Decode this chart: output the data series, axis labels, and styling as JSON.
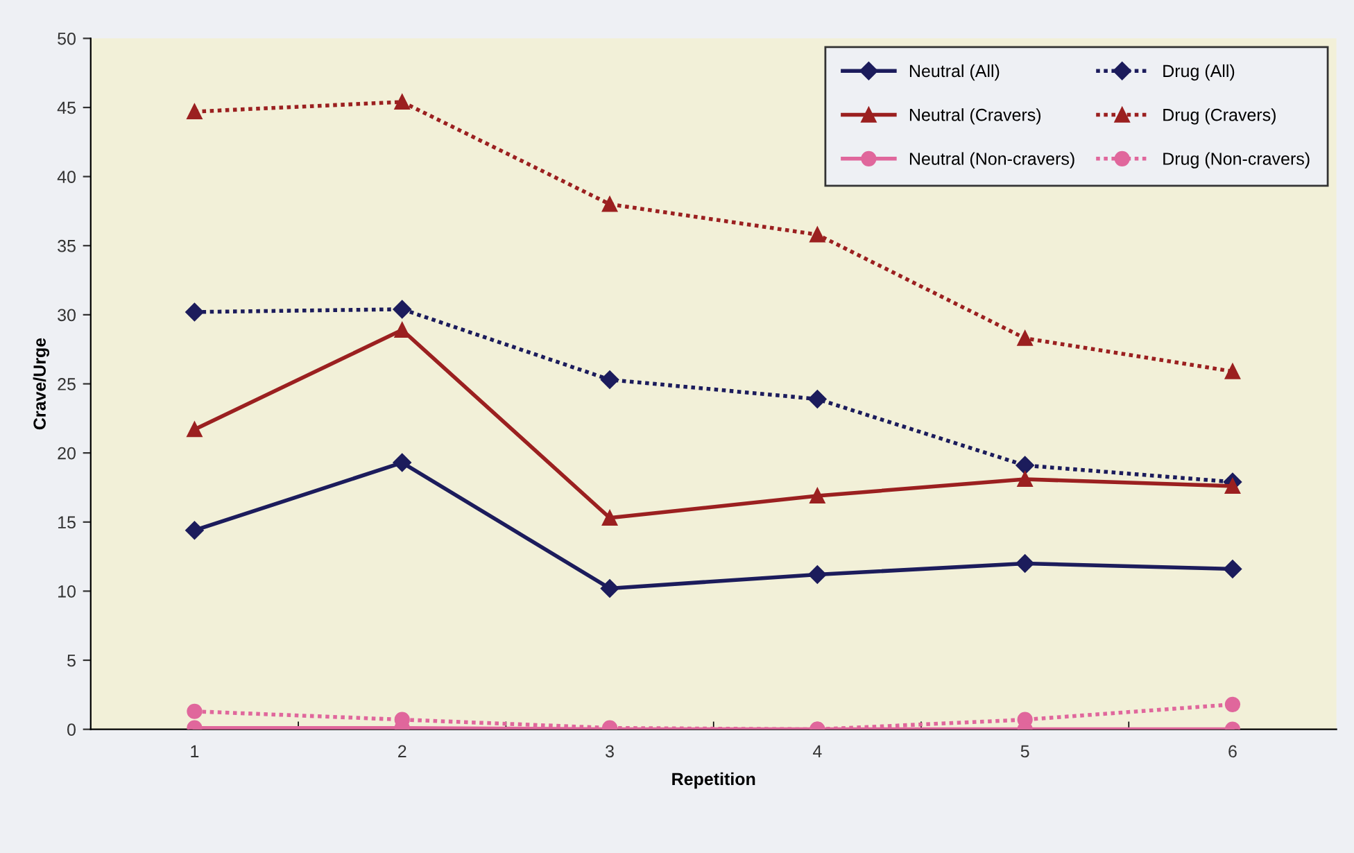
{
  "chart_data": {
    "type": "line",
    "xlabel": "Repetition",
    "ylabel": "Crave/Urge",
    "categories": [
      "1",
      "2",
      "3",
      "4",
      "5",
      "6"
    ],
    "ylim": [
      0,
      50
    ],
    "yticks": [
      0,
      5,
      10,
      15,
      20,
      25,
      30,
      35,
      40,
      45,
      50
    ],
    "grid": false,
    "legend": "top right",
    "series": [
      {
        "name": "Neutral (All)",
        "color": "#1c1c5c",
        "marker": "diamond",
        "line_style": "solid",
        "values": [
          14.4,
          19.3,
          10.2,
          11.2,
          12.0,
          11.6
        ]
      },
      {
        "name": "Neutral (Cravers)",
        "color": "#9b2020",
        "marker": "triangle",
        "line_style": "solid",
        "values": [
          21.7,
          28.9,
          15.3,
          16.9,
          18.1,
          17.6
        ]
      },
      {
        "name": "Neutral (Non-cravers)",
        "color": "#e0679c",
        "marker": "circle",
        "line_style": "solid",
        "values": [
          0.1,
          0.1,
          0,
          0,
          0,
          0
        ]
      },
      {
        "name": "Drug (All)",
        "color": "#1c1c5c",
        "marker": "diamond",
        "line_style": "dotted",
        "values": [
          30.2,
          30.4,
          25.3,
          23.9,
          19.1,
          17.9
        ]
      },
      {
        "name": "Drug (Cravers)",
        "color": "#9b2020",
        "marker": "triangle",
        "line_style": "dotted",
        "values": [
          44.7,
          45.4,
          38.0,
          35.8,
          28.3,
          25.9
        ]
      },
      {
        "name": "Drug (Non-cravers)",
        "color": "#e0679c",
        "marker": "circle",
        "line_style": "dotted",
        "values": [
          1.3,
          0.7,
          0.1,
          0,
          0.7,
          1.8
        ]
      }
    ]
  }
}
